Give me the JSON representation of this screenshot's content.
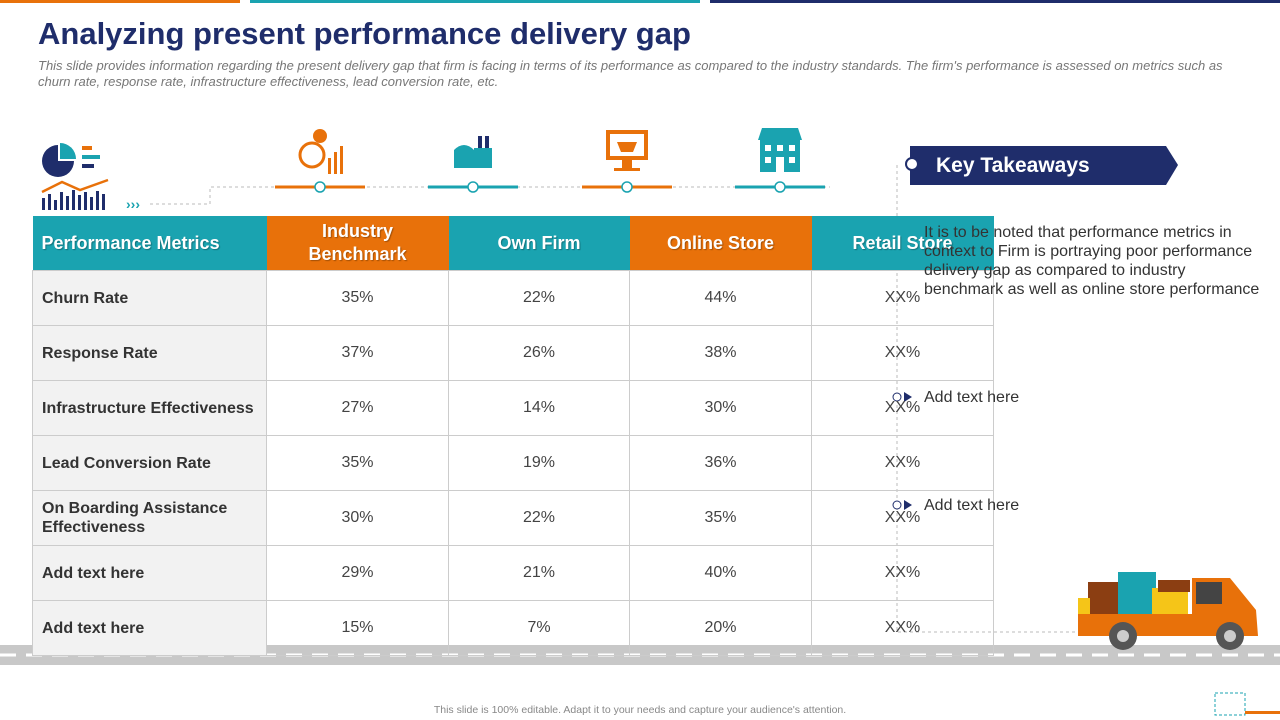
{
  "header": {
    "title": "Analyzing present performance delivery gap",
    "subtitle": "This slide provides information regarding the present delivery gap that firm is facing in terms of its performance as compared to the industry standards. The firm's performance is assessed on metrics such as churn rate, response rate, infrastructure effectiveness, lead conversion rate, etc."
  },
  "table": {
    "headers": [
      "Performance Metrics",
      "Industry Benchmark",
      "Own Firm",
      "Online Store",
      "Retail Store"
    ],
    "rows": [
      [
        "Churn Rate",
        "35%",
        "22%",
        "44%",
        "XX%"
      ],
      [
        "Response Rate",
        "37%",
        "26%",
        "38%",
        "XX%"
      ],
      [
        "Infrastructure Effectiveness",
        "27%",
        "14%",
        "30%",
        "XX%"
      ],
      [
        "Lead Conversion Rate",
        "35%",
        "19%",
        "36%",
        "XX%"
      ],
      [
        "On Boarding Assistance Effectiveness",
        "30%",
        "22%",
        "35%",
        "XX%"
      ],
      [
        "Add text here",
        "29%",
        "21%",
        "40%",
        "XX%"
      ],
      [
        "Add text here",
        "15%",
        "7%",
        "20%",
        "XX%"
      ]
    ]
  },
  "takeaways": {
    "title": "Key Takeaways",
    "items": [
      "It is to be noted that performance metrics in context to Firm is portraying poor performance delivery gap as compared to industry benchmark as well as online store performance",
      "Add text here",
      "Add text here"
    ]
  },
  "footer": "This slide is 100% editable. Adapt it to your needs and capture your audience's attention."
}
